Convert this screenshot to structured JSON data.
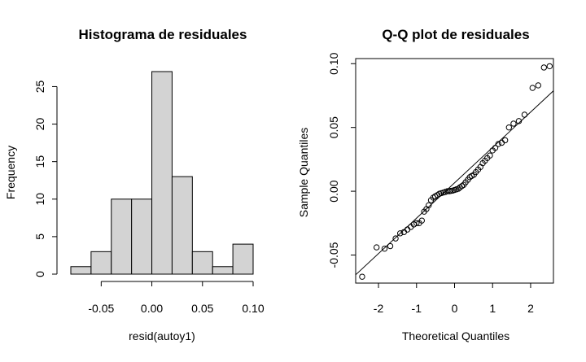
{
  "chart_data": [
    {
      "type": "bar",
      "subtype": "histogram",
      "title": "Histograma de residuales",
      "xlabel": "resid(autoy1)",
      "ylabel": "Frequency",
      "bin_edges": [
        -0.08,
        -0.06,
        -0.04,
        -0.02,
        0.0,
        0.02,
        0.04,
        0.06,
        0.08,
        0.1
      ],
      "values": [
        1,
        3,
        10,
        10,
        27,
        13,
        3,
        1,
        4
      ],
      "xlim": [
        -0.08,
        0.1
      ],
      "ylim": [
        0,
        27
      ],
      "x_ticks": [
        -0.05,
        0.0,
        0.05,
        0.1
      ],
      "x_tick_labels": [
        "-0.05",
        "0.00",
        "0.05",
        "0.10"
      ],
      "y_ticks": [
        0,
        5,
        10,
        15,
        20,
        25
      ],
      "y_tick_labels": [
        "0",
        "5",
        "10",
        "15",
        "20",
        "25"
      ],
      "grid": false,
      "colors": {
        "bar_fill": "#d3d3d3",
        "bar_stroke": "#000000"
      }
    },
    {
      "type": "scatter",
      "subtype": "qq-plot",
      "title": "Q-Q plot de residuales",
      "xlabel": "Theoretical Quantiles",
      "ylabel": "Sample Quantiles",
      "xlim": [
        -2.6,
        2.6
      ],
      "ylim": [
        -0.072,
        0.104
      ],
      "x_ticks": [
        -2,
        -1,
        0,
        1,
        2
      ],
      "x_tick_labels": [
        "-2",
        "-1",
        "0",
        "1",
        "2"
      ],
      "y_ticks": [
        -0.05,
        0.0,
        0.05,
        0.1
      ],
      "y_tick_labels": [
        "-0.05",
        "0.00",
        "0.05",
        "0.10"
      ],
      "reference_line": {
        "x1": -2.6,
        "y1": -0.0655,
        "x2": 2.6,
        "y2": 0.0787
      },
      "points": [
        [
          -2.43,
          -0.067
        ],
        [
          -2.05,
          -0.044
        ],
        [
          -1.84,
          -0.045
        ],
        [
          -1.69,
          -0.043
        ],
        [
          -1.55,
          -0.037
        ],
        [
          -1.43,
          -0.033
        ],
        [
          -1.33,
          -0.032
        ],
        [
          -1.24,
          -0.03
        ],
        [
          -1.15,
          -0.028
        ],
        [
          -1.07,
          -0.026
        ],
        [
          -1.0,
          -0.025
        ],
        [
          -0.93,
          -0.025
        ],
        [
          -0.86,
          -0.023
        ],
        [
          -0.8,
          -0.016
        ],
        [
          -0.74,
          -0.014
        ],
        [
          -0.68,
          -0.011
        ],
        [
          -0.62,
          -0.007
        ],
        [
          -0.56,
          -0.005
        ],
        [
          -0.51,
          -0.004
        ],
        [
          -0.45,
          -0.003
        ],
        [
          -0.4,
          -0.002
        ],
        [
          -0.35,
          -0.0015
        ],
        [
          -0.29,
          -0.001
        ],
        [
          -0.24,
          -0.0005
        ],
        [
          -0.19,
          0.0
        ],
        [
          -0.14,
          0.0
        ],
        [
          -0.1,
          0.0003
        ],
        [
          -0.05,
          0.0005
        ],
        [
          0.0,
          0.001
        ],
        [
          0.05,
          0.0015
        ],
        [
          0.1,
          0.002
        ],
        [
          0.14,
          0.003
        ],
        [
          0.19,
          0.004
        ],
        [
          0.24,
          0.005
        ],
        [
          0.29,
          0.007
        ],
        [
          0.35,
          0.009
        ],
        [
          0.4,
          0.011
        ],
        [
          0.45,
          0.012
        ],
        [
          0.51,
          0.013
        ],
        [
          0.56,
          0.015
        ],
        [
          0.62,
          0.017
        ],
        [
          0.68,
          0.019
        ],
        [
          0.74,
          0.022
        ],
        [
          0.8,
          0.024
        ],
        [
          0.86,
          0.026
        ],
        [
          0.93,
          0.028
        ],
        [
          1.0,
          0.032
        ],
        [
          1.07,
          0.034
        ],
        [
          1.15,
          0.037
        ],
        [
          1.24,
          0.038
        ],
        [
          1.33,
          0.04
        ],
        [
          1.43,
          0.05
        ],
        [
          1.55,
          0.053
        ],
        [
          1.69,
          0.055
        ],
        [
          1.84,
          0.06
        ],
        [
          2.05,
          0.081
        ],
        [
          2.2,
          0.083
        ],
        [
          2.35,
          0.097
        ],
        [
          2.5,
          0.098
        ]
      ],
      "grid": false
    }
  ]
}
